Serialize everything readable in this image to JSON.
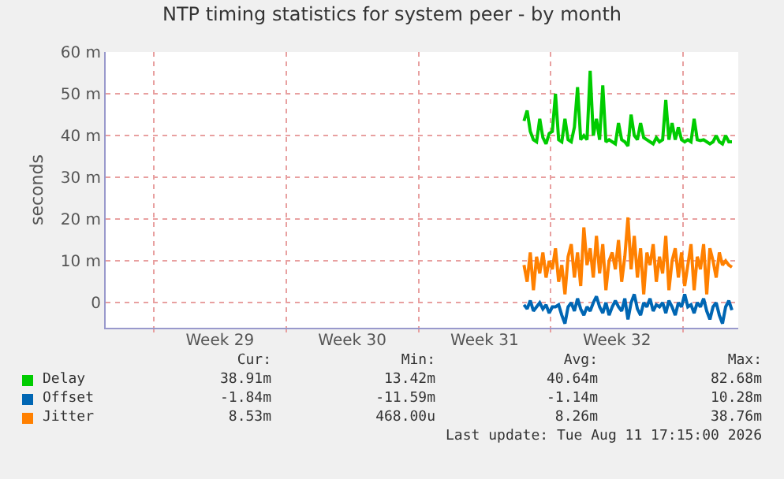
{
  "chart_data": {
    "type": "line",
    "title": "NTP timing statistics for system peer - by month",
    "ylabel": "seconds",
    "x": [
      "2026-08-01T14:00",
      "2026-08-01T18:00",
      "2026-08-01T22:00",
      "2026-08-02T02:00",
      "2026-08-02T06:00",
      "2026-08-02T10:00",
      "2026-08-02T14:00",
      "2026-08-02T18:00",
      "2026-08-02T22:00",
      "2026-08-03T02:00",
      "2026-08-03T06:00",
      "2026-08-03T10:00",
      "2026-08-03T14:00",
      "2026-08-03T18:00",
      "2026-08-03T22:00",
      "2026-08-04T02:00",
      "2026-08-04T06:00",
      "2026-08-04T10:00",
      "2026-08-04T14:00",
      "2026-08-04T18:00",
      "2026-08-04T22:00",
      "2026-08-05T02:00",
      "2026-08-05T06:00",
      "2026-08-05T10:00",
      "2026-08-05T14:00",
      "2026-08-05T18:00",
      "2026-08-05T22:00",
      "2026-08-06T02:00",
      "2026-08-06T06:00",
      "2026-08-06T10:00",
      "2026-08-06T14:00",
      "2026-08-06T18:00",
      "2026-08-06T22:00",
      "2026-08-07T02:00",
      "2026-08-07T06:00",
      "2026-08-07T10:00",
      "2026-08-07T14:00",
      "2026-08-07T18:00",
      "2026-08-07T22:00",
      "2026-08-08T02:00",
      "2026-08-08T06:00",
      "2026-08-08T10:00",
      "2026-08-08T14:00",
      "2026-08-08T18:00",
      "2026-08-08T22:00",
      "2026-08-09T02:00",
      "2026-08-09T06:00",
      "2026-08-09T10:00",
      "2026-08-09T14:00",
      "2026-08-09T18:00",
      "2026-08-09T22:00",
      "2026-08-10T02:00",
      "2026-08-10T06:00",
      "2026-08-10T10:00",
      "2026-08-10T14:00",
      "2026-08-10T18:00",
      "2026-08-10T22:00",
      "2026-08-11T02:00",
      "2026-08-11T06:00",
      "2026-08-11T10:00",
      "2026-08-11T14:00",
      "2026-08-11T18:00",
      "2026-08-11T22:00",
      "2026-08-12T02:00",
      "2026-08-12T06:00",
      "2026-08-12T10:00",
      "2026-08-12T14:00"
    ],
    "series": [
      {
        "name": "Delay",
        "color": "#00cc00",
        "values": [
          43.5,
          46,
          41,
          39,
          38.5,
          44,
          39.5,
          38,
          40.5,
          41,
          50,
          39,
          38.5,
          44,
          39,
          38.5,
          42,
          51.6,
          39,
          40,
          39,
          55.5,
          40,
          44,
          39,
          52,
          38.5,
          39,
          38.5,
          38,
          43,
          39,
          38.5,
          37.5,
          45,
          40,
          39,
          43,
          39.5,
          39,
          38.5,
          38,
          39.5,
          38.5,
          39,
          48.5,
          39,
          43,
          39,
          42,
          39,
          38.5,
          39,
          38.5,
          44,
          39,
          38.8,
          39,
          38.5,
          38,
          38.5,
          40,
          38.5,
          38,
          40,
          38.5,
          38.5
        ]
      },
      {
        "name": "Offset",
        "color": "#0066b3",
        "values": [
          -0.5,
          -1.5,
          0.5,
          -2,
          -1,
          0,
          -1.5,
          -0.5,
          -2.5,
          -1,
          -1,
          -0.5,
          -3,
          -5,
          -1,
          0,
          -2,
          1,
          -1.5,
          -3,
          -1,
          -2,
          0,
          1.5,
          -1,
          -2.5,
          0,
          -3,
          -1,
          0.5,
          -1,
          -2,
          1,
          -4,
          0,
          2,
          -1.5,
          -3,
          0,
          -1,
          1,
          -2,
          -0.5,
          -1,
          0,
          -2.5,
          0.5,
          -1,
          -3,
          0,
          -1,
          2,
          -1,
          -0.5,
          -2.5,
          0,
          -1,
          1,
          -2,
          -4,
          -1,
          0,
          -3,
          -5,
          -1,
          0.5,
          -1.8
        ]
      },
      {
        "name": "Jitter",
        "color": "#ff8000",
        "values": [
          9,
          5,
          12,
          3,
          11,
          7,
          12,
          6,
          10,
          8,
          13,
          5,
          9,
          2,
          11,
          14,
          6,
          12,
          4,
          18,
          9,
          13,
          6,
          16,
          7,
          14,
          3,
          10,
          12,
          8,
          15,
          5,
          11,
          20.4,
          8,
          16,
          6,
          13,
          2,
          12,
          9,
          14,
          5,
          11,
          7,
          16,
          3,
          10,
          13,
          6,
          12,
          4,
          9,
          14,
          3,
          11,
          8,
          14,
          2,
          13,
          10,
          6,
          12,
          9,
          10,
          9,
          8.5
        ]
      }
    ],
    "xlim": [
      "2026-07-10T11:00",
      "2026-08-12T22:00"
    ],
    "xticks": [
      {
        "value": "2026-07-13",
        "label": null
      },
      {
        "value": "2026-07-16T12:00",
        "label": "Week 29"
      },
      {
        "value": "2026-07-20",
        "label": null
      },
      {
        "value": "2026-07-23T12:00",
        "label": "Week 30"
      },
      {
        "value": "2026-07-27",
        "label": null
      },
      {
        "value": "2026-07-30T12:00",
        "label": "Week 31"
      },
      {
        "value": "2026-08-03",
        "label": null
      },
      {
        "value": "2026-08-06T12:00",
        "label": "Week 32"
      },
      {
        "value": "2026-08-10",
        "label": null
      }
    ],
    "ylim": [
      -6,
      60
    ],
    "yticks": [
      0,
      {
        "value": 10,
        "label": "10 m"
      },
      {
        "value": 20,
        "label": "20 m"
      },
      {
        "value": 30,
        "label": "30 m"
      },
      {
        "value": 40,
        "label": "40 m"
      },
      {
        "value": 50,
        "label": "50 m"
      },
      {
        "value": 60,
        "label": "60 m"
      }
    ],
    "grid": true,
    "legend": "bottom",
    "marker": "none",
    "line_style": "solid",
    "annotations": [
      "Cur:",
      "Min:",
      "Avg:",
      "Max:",
      "38.91m",
      "13.42m",
      "40.64m",
      "82.68m",
      "-1.84m",
      "-11.59m",
      "-1.14m",
      "10.28m",
      "8.53m",
      "468.00u",
      "8.26m",
      "38.76m",
      "Last update: Tue Aug 11 17:15:00 2026"
    ]
  }
}
